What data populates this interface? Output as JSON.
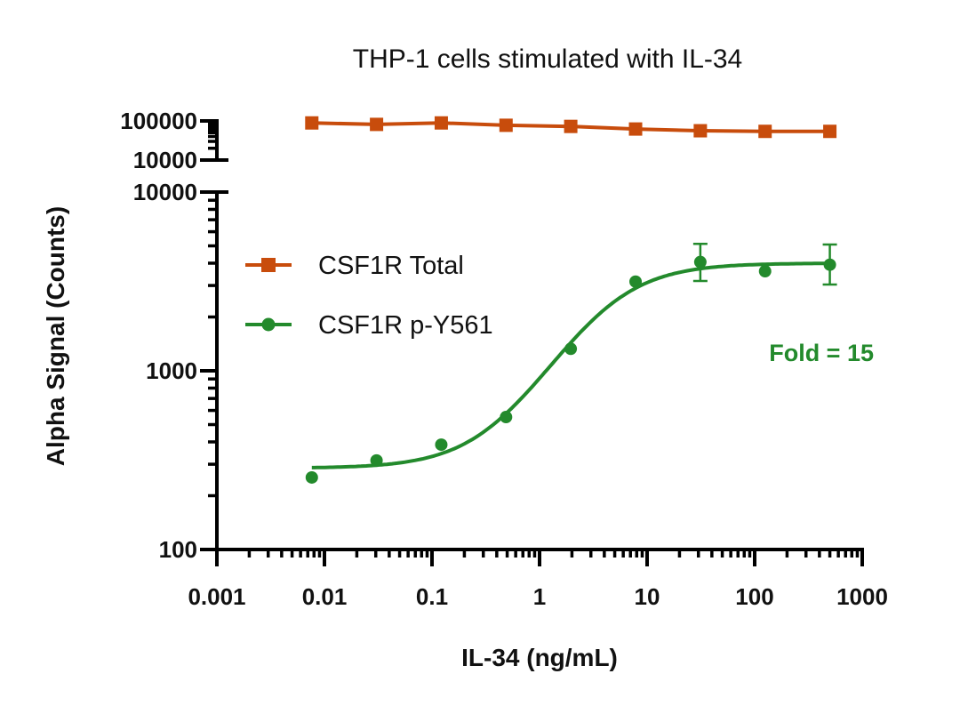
{
  "chart_data": {
    "type": "line",
    "title": "THP-1 cells stimulated with IL-34",
    "xlabel": "IL-34 (ng/mL)",
    "ylabel": "Alpha Signal (Counts)",
    "xscale": "log",
    "yscale": "log",
    "xlim": [
      0.001,
      1000
    ],
    "x_ticks": [
      "0.001",
      "0.01",
      "0.1",
      "1",
      "10",
      "100",
      "1000"
    ],
    "x_tick_values": [
      0.001,
      0.01,
      0.1,
      1,
      10,
      100,
      1000
    ],
    "y_axis_segments": [
      {
        "name": "upper",
        "ylim": [
          10000,
          100000
        ],
        "ticks": [
          "100000",
          "10000"
        ],
        "tick_values": [
          100000,
          10000
        ]
      },
      {
        "name": "lower",
        "ylim": [
          100,
          10000
        ],
        "ticks": [
          "10000",
          "1000",
          "100"
        ],
        "tick_values": [
          10000,
          1000,
          100
        ]
      }
    ],
    "grid": false,
    "legend": {
      "placement": "upper-left",
      "entries": [
        {
          "label": "CSF1R Total",
          "marker": "square",
          "color": "#C84C0C"
        },
        {
          "label": "CSF1R p-Y561",
          "marker": "circle",
          "color": "#238A2C"
        }
      ]
    },
    "x": [
      0.00763,
      0.0305,
      0.122,
      0.488,
      1.95,
      7.81,
      31.25,
      125,
      500
    ],
    "series": [
      {
        "name": "CSF1R Total",
        "color": "#C84C0C",
        "marker": "square",
        "axis_segment": "upper",
        "connect": "line",
        "values": [
          88900,
          81500,
          88900,
          77400,
          72400,
          62100,
          56100,
          54100,
          54100
        ]
      },
      {
        "name": "CSF1R p-Y561",
        "color": "#238A2C",
        "marker": "circle",
        "axis_segment": "lower",
        "connect": "fit",
        "values": [
          253,
          315,
          386,
          551,
          1327,
          3155,
          4060,
          3606,
          3922
        ],
        "error_bars": [
          null,
          null,
          null,
          null,
          null,
          null,
          [
            3180,
            5130
          ],
          null,
          [
            3038,
            5088
          ]
        ],
        "fit": {
          "model": "4PL",
          "bottom": 285,
          "top": 4000,
          "log_ec50": 0.58,
          "hill": 1.2,
          "x_range": [
            0.00763,
            500
          ]
        }
      }
    ],
    "annotations": [
      {
        "text": "Fold = 15",
        "color": "#238A2C",
        "placement": "right, below plateau"
      }
    ]
  }
}
